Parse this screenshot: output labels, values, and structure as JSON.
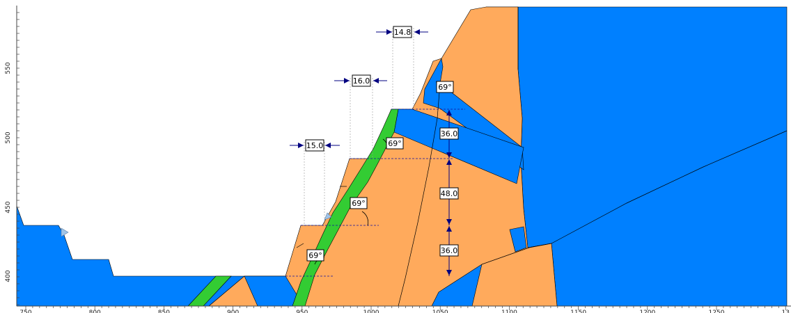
{
  "colors": {
    "water": "#0080FF",
    "soil": "#FFAA5C",
    "fault": "#33CC33",
    "line": "#000000",
    "dim_arrow": "#000080",
    "dashed": "#1010A0"
  },
  "axes": {
    "x_ticks": [
      "750",
      "800",
      "850",
      "900",
      "950",
      "1000",
      "1050",
      "1100",
      "1150",
      "1200",
      "1250",
      "13"
    ],
    "y_ticks": [
      "550",
      "500",
      "450",
      "400"
    ]
  },
  "dimensions": {
    "widths": [
      "14.8",
      "16.0",
      "15.0"
    ],
    "heights": [
      "36.0",
      "48.0",
      "36.0"
    ],
    "angles": [
      "69°",
      "69°",
      "69°",
      "69°"
    ]
  },
  "icons": [
    "water-table-marker-icon",
    "water-table-marker-icon"
  ]
}
